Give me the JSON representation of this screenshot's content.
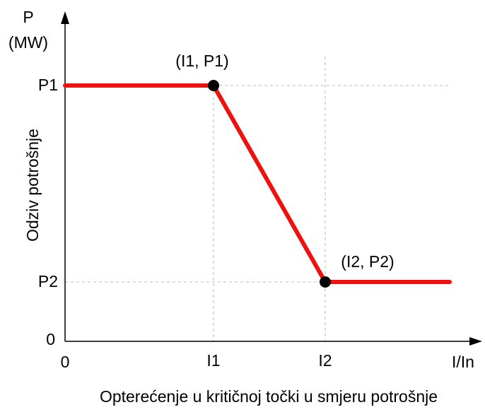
{
  "y_axis": {
    "symbol": "P",
    "unit": "(MW)",
    "title": "Odziv potrošnje",
    "ticks": [
      "P1",
      "P2",
      "0"
    ]
  },
  "x_axis": {
    "symbol": "I/In",
    "title": "Opterećenje u kritičnoj točki u smjeru potrošnje",
    "ticks": [
      "0",
      "I1",
      "I2"
    ]
  },
  "points": [
    {
      "label": "(I1, P1)"
    },
    {
      "label": "(I2, P2)"
    }
  ]
}
